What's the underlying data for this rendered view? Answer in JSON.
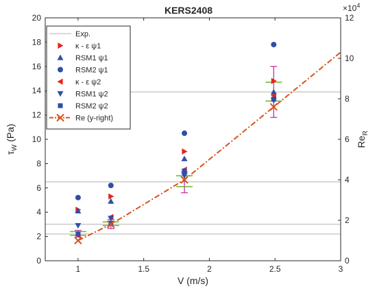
{
  "chart_data": {
    "type": "scatter",
    "title": "KERS2408",
    "x_axis": {
      "label": "V  (m/s)",
      "range": [
        0.75,
        3
      ],
      "ticks": [
        1,
        1.5,
        2,
        2.5,
        3
      ],
      "tick_labels": [
        "1",
        "1.5",
        "2",
        "2.5",
        "3"
      ]
    },
    "y_axis_left": {
      "label_main": "τ",
      "label_sub": "W",
      "label_unit": " (Pa)",
      "range": [
        0,
        20
      ],
      "ticks": [
        0,
        2,
        4,
        6,
        8,
        10,
        12,
        14,
        16,
        18,
        20
      ],
      "tick_labels": [
        "0",
        "2",
        "4",
        "6",
        "8",
        "10",
        "12",
        "14",
        "16",
        "18",
        "20"
      ]
    },
    "y_axis_right": {
      "label_main": "Re",
      "label_sub": "R",
      "exponent_label": "×10",
      "exponent_power": "4",
      "range": [
        0,
        12
      ],
      "ticks": [
        0,
        2,
        4,
        6,
        8,
        10,
        12
      ],
      "tick_labels": [
        "0",
        "2",
        "4",
        "6",
        "8",
        "10",
        "12"
      ]
    },
    "exp_reference_lines": {
      "name": "Exp.",
      "color": "#b0b0b0",
      "y_values": [
        2.2,
        3.0,
        6.5,
        13.9
      ]
    },
    "error_bars": [
      {
        "x": 1.0,
        "center": 2.2,
        "low": 1.95,
        "high": 2.5
      },
      {
        "x": 1.25,
        "center": 3.0,
        "low": 2.65,
        "high": 3.4
      },
      {
        "x": 1.81,
        "center": 6.5,
        "low": 5.6,
        "high": 7.3
      },
      {
        "x": 2.49,
        "center": 13.9,
        "low": 11.8,
        "high": 16.0
      }
    ],
    "error_bar_color": "#c020a0",
    "caps": [
      {
        "x": 1.0,
        "y": 2.1
      },
      {
        "x": 1.0,
        "y": 2.4
      },
      {
        "x": 1.25,
        "y": 2.9
      },
      {
        "x": 1.25,
        "y": 3.2
      },
      {
        "x": 1.81,
        "y": 6.1
      },
      {
        "x": 1.81,
        "y": 7.0
      },
      {
        "x": 2.49,
        "y": 13.15
      },
      {
        "x": 2.49,
        "y": 14.7
      }
    ],
    "cap_color": "#70b030",
    "series": [
      {
        "name": "κ - ε ψ1",
        "marker": "triangle-right",
        "color": "#e8221c",
        "x": [
          1.0,
          1.25,
          1.81,
          2.49
        ],
        "y": [
          4.2,
          5.3,
          9.0,
          14.8
        ]
      },
      {
        "name": "RSM1 ψ1",
        "marker": "triangle-up",
        "color": "#2e4ea8",
        "x": [
          1.0,
          1.25,
          1.81,
          2.49
        ],
        "y": [
          4.1,
          4.9,
          8.4,
          13.9
        ]
      },
      {
        "name": "RSM2 ψ1",
        "marker": "circle",
        "color": "#2e4ea8",
        "x": [
          1.0,
          1.25,
          1.81,
          2.49
        ],
        "y": [
          5.2,
          6.2,
          10.5,
          17.8
        ]
      },
      {
        "name": "κ - ε ψ2",
        "marker": "triangle-left",
        "color": "#e8221c",
        "x": [
          1.0,
          1.25,
          1.81,
          2.49
        ],
        "y": [
          2.1,
          3.6,
          7.5,
          13.6
        ]
      },
      {
        "name": "RSM1 ψ2",
        "marker": "triangle-down",
        "color": "#2e4ea8",
        "x": [
          1.0,
          1.25,
          1.81,
          2.49
        ],
        "y": [
          2.9,
          3.5,
          7.0,
          13.2
        ]
      },
      {
        "name": "RSM2 ψ2",
        "marker": "square",
        "color": "#2e4ea8",
        "x": [
          1.0,
          1.25,
          1.81,
          2.49
        ],
        "y": [
          2.2,
          3.1,
          7.4,
          13.3
        ]
      }
    ],
    "re_series": {
      "name": "Re (y-right)",
      "color": "#d95319",
      "line_style": "dash-dot",
      "marker": "x",
      "points_x": [
        1.0,
        1.25,
        1.81,
        2.49
      ],
      "points_y_right": [
        1.0,
        1.8,
        4.0,
        7.6
      ],
      "line_x": [
        1.0,
        1.25,
        1.81,
        2.49,
        3.0
      ],
      "line_y_right": [
        1.0,
        1.8,
        4.0,
        7.6,
        10.3
      ]
    },
    "legend": {
      "position": "top-left",
      "entries": [
        "Exp.",
        "κ - ε ψ1",
        "RSM1 ψ1",
        "RSM2 ψ1",
        "κ - ε ψ2",
        "RSM1 ψ2",
        "RSM2 ψ2",
        "Re (y-right)"
      ]
    },
    "grid": false
  }
}
